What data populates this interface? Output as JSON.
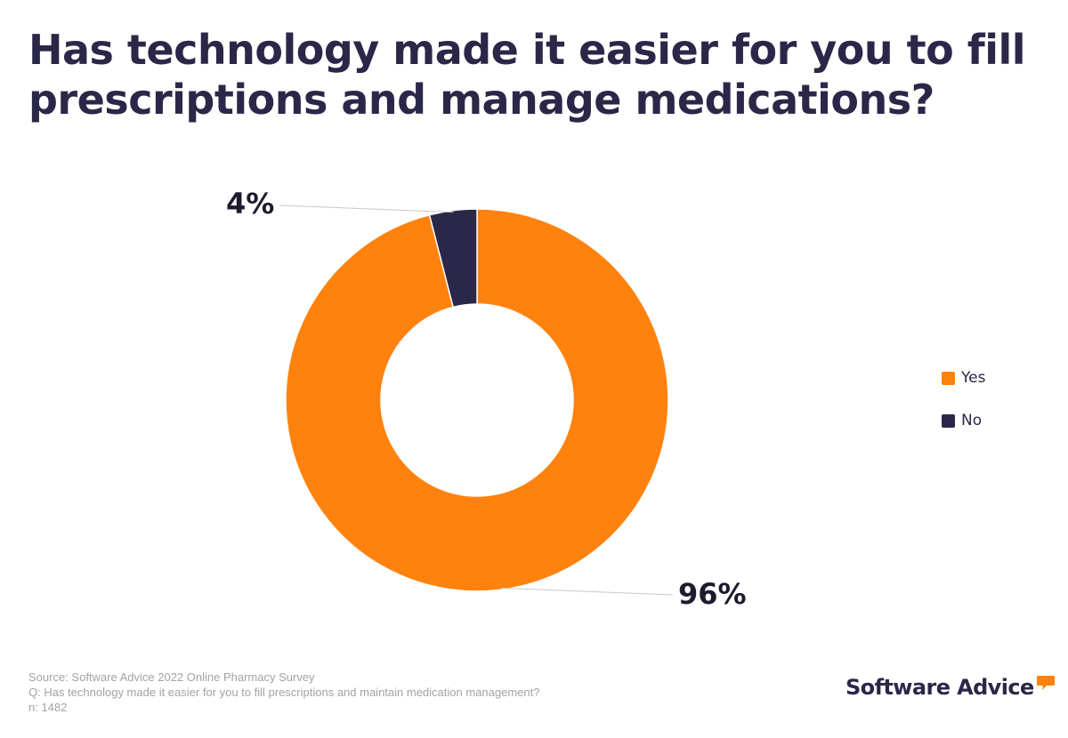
{
  "chart_data": {
    "type": "pie",
    "title": "Has technology made it easier for you to fill prescriptions and manage medications?",
    "donut": true,
    "slices": [
      {
        "label": "Yes",
        "value": 96,
        "display": "96%",
        "color": "#ff820f"
      },
      {
        "label": "No",
        "value": 4,
        "display": "4%",
        "color": "#2b2748"
      }
    ],
    "legend_position": "right",
    "grid": false
  },
  "footer": {
    "source": "Source: Software Advice 2022 Online Pharmacy Survey",
    "question": "Q: Has technology made it easier for you to fill prescriptions and maintain medication management?",
    "sample": "n: 1482"
  },
  "logo": {
    "text": "Software Advice",
    "mark_color": "#ff820f",
    "mark_icon": "speech-bubble-icon"
  }
}
